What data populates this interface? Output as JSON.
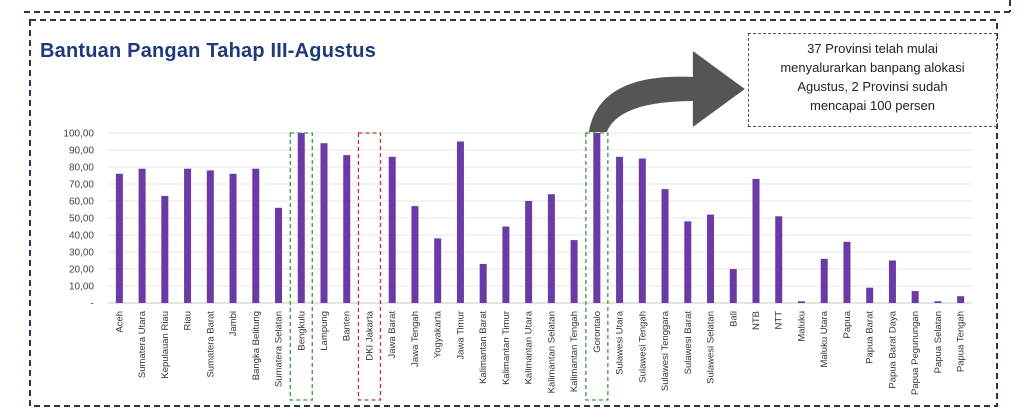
{
  "title": "Bantuan Pangan Tahap III-Agustus",
  "callout": {
    "lines": [
      "37 Provinsi telah mulai",
      "menyalurarkan banpang alokasi",
      "Agustus, 2 Provinsi sudah",
      "mencapai 100 persen"
    ]
  },
  "colors": {
    "bar": "#6a3aa6",
    "title": "#1f3a7a",
    "highlight_full": "#3a9a3a",
    "highlight_zero": "#c83232",
    "arrow": "#555555"
  },
  "highlighted": {
    "full": [
      "Bengkulu",
      "Gorontalo"
    ],
    "zero": [
      "DKI Jakarta"
    ]
  },
  "chart_data": {
    "type": "bar",
    "categories": [
      "Aceh",
      "Sumatera Utara",
      "Kepulauan Riau",
      "Riau",
      "Sumatera Barat",
      "Jambi",
      "Bangka Belitung",
      "Sumatera Selatan",
      "Bengkulu",
      "Lampung",
      "Banten",
      "DKI Jakarta",
      "Jawa Barat",
      "Jawa Tengah",
      "Yogyakarta",
      "Jawa Timur",
      "Kalimantan Barat",
      "Kalimantan Timur",
      "Kalimantan Utara",
      "Kalimantan Selatan",
      "Kalimantan Tengah",
      "Gorontalo",
      "Sulawesi Utara",
      "Sulawesi Tengah",
      "Sulawesi Tenggara",
      "Sulawesi Barat",
      "Sulawesi Selatan",
      "Bali",
      "NTB",
      "NTT",
      "Maluku",
      "Maluku Utara",
      "Papua",
      "Papua Barat",
      "Papua Barat Daya",
      "Papua Pegunungan",
      "Papua Selatan",
      "Papua Tengah"
    ],
    "values": [
      76,
      79,
      63,
      79,
      78,
      76,
      79,
      56,
      100,
      94,
      87,
      0,
      86,
      57,
      38,
      95,
      23,
      45,
      60,
      64,
      37,
      100,
      86,
      85,
      67,
      48,
      52,
      20,
      73,
      51,
      1,
      26,
      36,
      9,
      25,
      7,
      1,
      4
    ],
    "ytick_labels": [
      "-",
      "10,00",
      "20,00",
      "30,00",
      "40,00",
      "50,00",
      "60,00",
      "70,00",
      "80,00",
      "90,00",
      "100,00"
    ],
    "ylim": [
      0,
      100
    ],
    "grid": true,
    "legend": "none"
  }
}
